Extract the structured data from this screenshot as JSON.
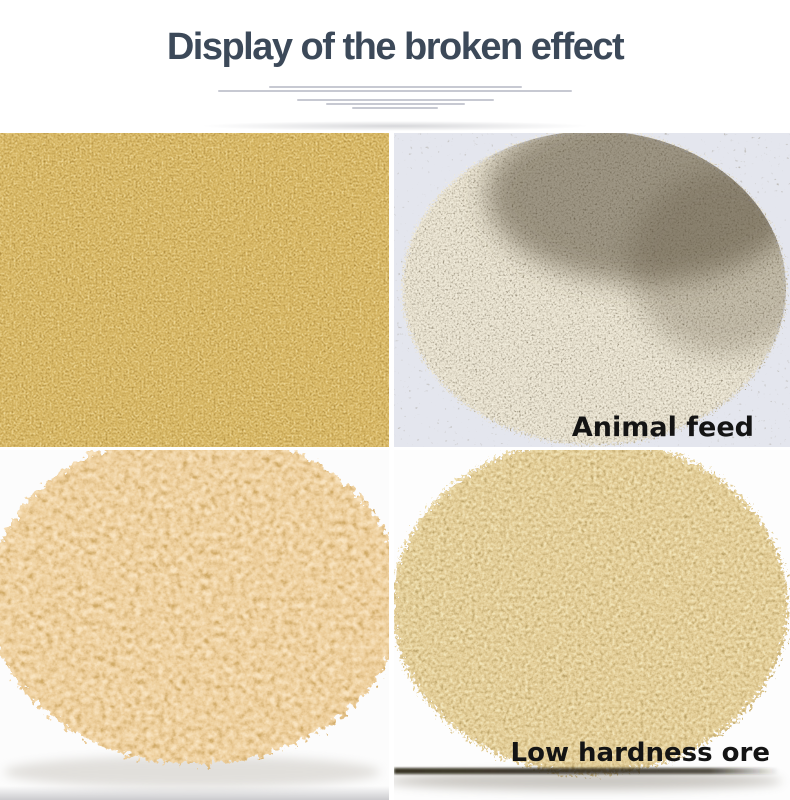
{
  "header": {
    "title": "Display of the broken effect",
    "title_color": "#3c4959",
    "fine_print_color": "#b9bcc7",
    "fine_print_line_widths": [
      253,
      354,
      197,
      139,
      86
    ]
  },
  "gallery": {
    "label_color": "#141414",
    "cells": [
      {
        "name": "crushed-golden-grain",
        "label": "",
        "material_colors": {
          "dark": "#6b420d",
          "mid": "#b07a21",
          "light": "#deb554"
        },
        "background": "#b07f2a"
      },
      {
        "name": "animal-feed",
        "label": "Animal feed",
        "material_colors": {
          "dark": "#544a36",
          "mid": "#ccbf9e",
          "light": "#ede3c4"
        },
        "background": "#e4e6ee"
      },
      {
        "name": "granular-material",
        "label": "",
        "material_colors": {
          "dark": "#a16621",
          "mid": "#d99e54",
          "light": "#f2c787"
        },
        "background": "#fcfcfc"
      },
      {
        "name": "low-hardness-ore",
        "label": "Low hardness ore",
        "material_colors": {
          "dark": "#805e24",
          "mid": "#c2994d",
          "light": "#e6cc8c"
        },
        "background": "#fdfdfd"
      }
    ]
  }
}
